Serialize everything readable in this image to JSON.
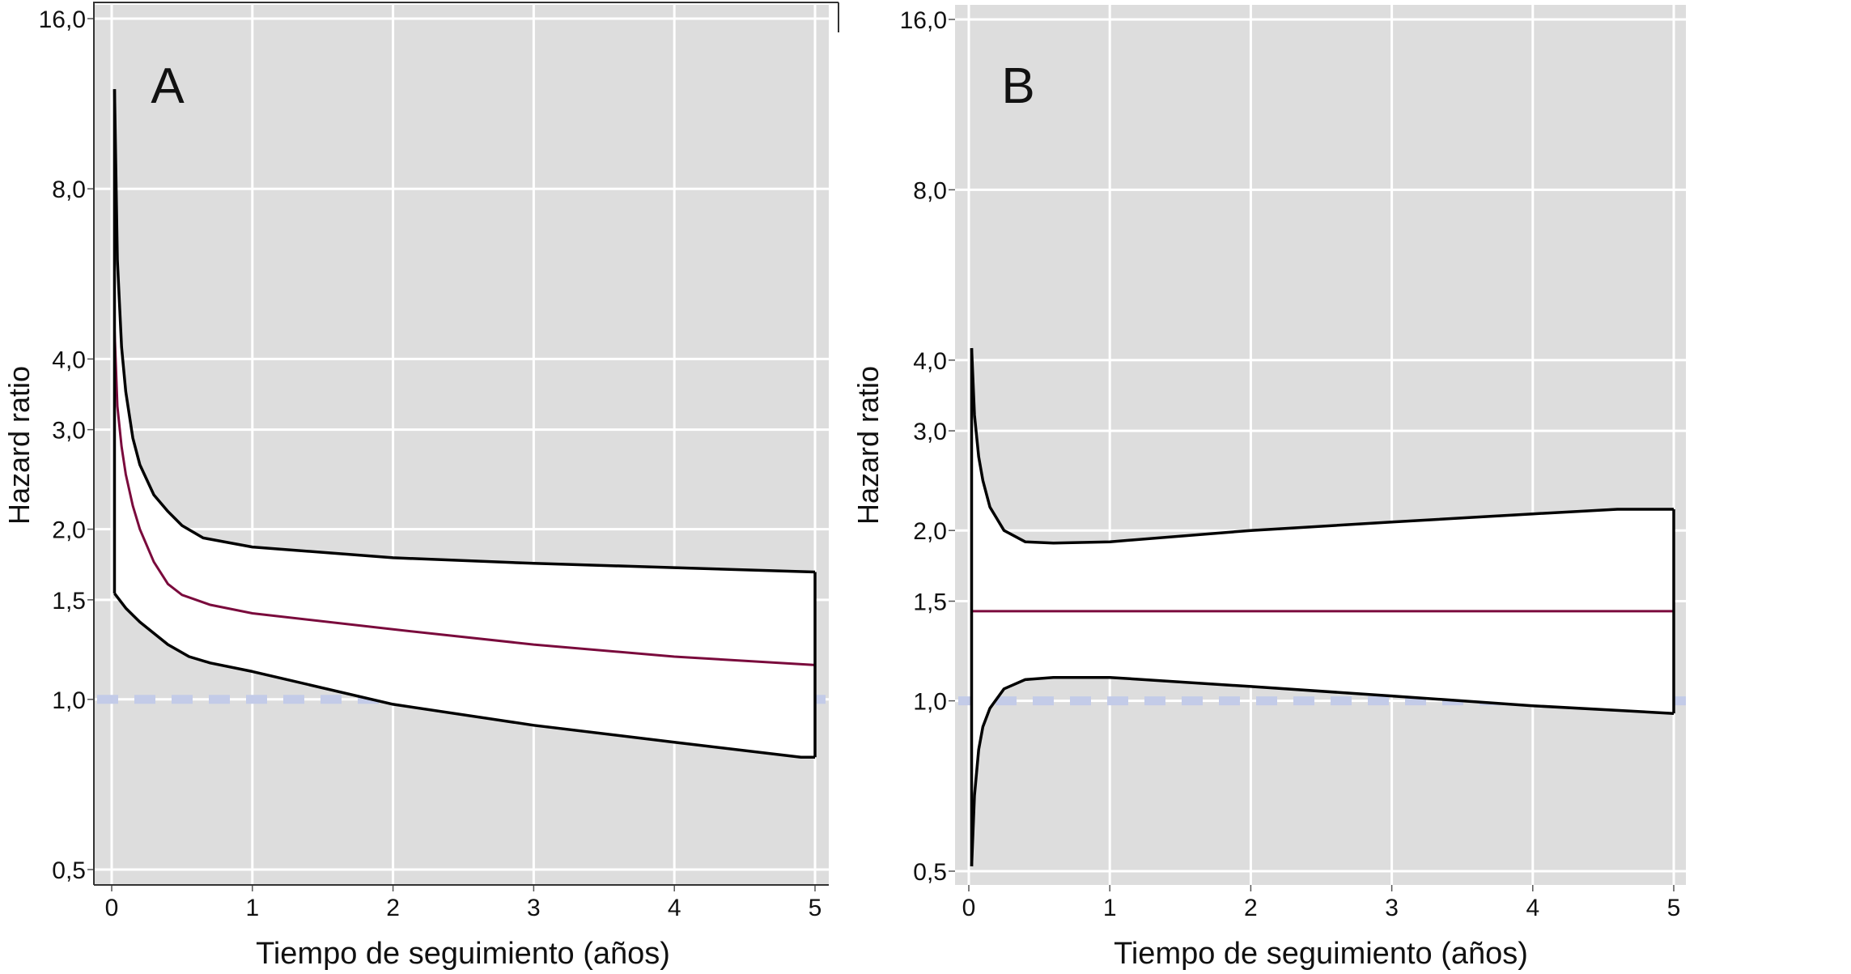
{
  "chart_data": [
    {
      "type": "line",
      "panel_label": "A",
      "xlabel": "Tiempo de seguimiento (años)",
      "ylabel": "Hazard ratio",
      "xlim": [
        0,
        5
      ],
      "ylim": [
        0.5,
        16
      ],
      "yscale": "log2",
      "x_ticks": [
        "0",
        "1",
        "2",
        "3",
        "4",
        "5"
      ],
      "x_tick_values": [
        0,
        1,
        2,
        3,
        4,
        5
      ],
      "y_ticks": [
        "0,5",
        "1,0",
        "1,5",
        "2,0",
        "3,0",
        "4,0",
        "8,0",
        "16,0"
      ],
      "y_tick_values": [
        0.5,
        1,
        1.5,
        2,
        3,
        4,
        8,
        16
      ],
      "grid": true,
      "reference_line": 1.0,
      "series": [
        {
          "name": "upper",
          "color": "#000000",
          "x": [
            0.02,
            0.04,
            0.07,
            0.1,
            0.15,
            0.2,
            0.3,
            0.4,
            0.5,
            0.65,
            1,
            2,
            3,
            4,
            5
          ],
          "y": [
            12,
            6,
            4.2,
            3.5,
            2.9,
            2.6,
            2.3,
            2.15,
            2.03,
            1.93,
            1.86,
            1.78,
            1.74,
            1.71,
            1.68
          ]
        },
        {
          "name": "hazard_ratio",
          "color": "#7a0a3c",
          "x": [
            0.02,
            0.04,
            0.07,
            0.1,
            0.15,
            0.2,
            0.3,
            0.4,
            0.5,
            0.7,
            1,
            2,
            3,
            4,
            5
          ],
          "y": [
            4.5,
            3.3,
            2.8,
            2.5,
            2.2,
            2.0,
            1.75,
            1.6,
            1.53,
            1.47,
            1.42,
            1.33,
            1.25,
            1.19,
            1.15
          ]
        },
        {
          "name": "lower",
          "color": "#000000",
          "x": [
            0.02,
            0.1,
            0.2,
            0.4,
            0.55,
            0.7,
            1,
            2,
            3,
            4,
            4.9,
            5
          ],
          "y": [
            1.54,
            1.45,
            1.37,
            1.25,
            1.19,
            1.16,
            1.12,
            0.98,
            0.9,
            0.84,
            0.79,
            0.79
          ]
        }
      ]
    },
    {
      "type": "line",
      "panel_label": "B",
      "xlabel": "Tiempo de seguimiento (años)",
      "ylabel": "Hazard ratio",
      "xlim": [
        0,
        5
      ],
      "ylim": [
        0.5,
        16
      ],
      "yscale": "log2",
      "x_ticks": [
        "0",
        "1",
        "2",
        "3",
        "4",
        "5"
      ],
      "x_tick_values": [
        0,
        1,
        2,
        3,
        4,
        5
      ],
      "y_ticks": [
        "0,5",
        "1,0",
        "1,5",
        "2,0",
        "3,0",
        "4,0",
        "8,0",
        "16,0"
      ],
      "y_tick_values": [
        0.5,
        1,
        1.5,
        2,
        3,
        4,
        8,
        16
      ],
      "grid": true,
      "reference_line": 1.0,
      "series": [
        {
          "name": "upper",
          "color": "#000000",
          "x": [
            0.02,
            0.04,
            0.07,
            0.1,
            0.15,
            0.25,
            0.4,
            0.6,
            1,
            2,
            3,
            4,
            4.6,
            5
          ],
          "y": [
            4.2,
            3.2,
            2.7,
            2.45,
            2.2,
            2.0,
            1.91,
            1.9,
            1.91,
            2.0,
            2.07,
            2.14,
            2.18,
            2.18
          ]
        },
        {
          "name": "hazard_ratio",
          "color": "#7a0a3c",
          "x": [
            0.02,
            5
          ],
          "y": [
            1.44,
            1.44
          ]
        },
        {
          "name": "lower",
          "color": "#000000",
          "x": [
            0.02,
            0.04,
            0.07,
            0.1,
            0.15,
            0.25,
            0.4,
            0.6,
            1,
            2,
            3,
            4,
            5
          ],
          "y": [
            0.51,
            0.68,
            0.82,
            0.9,
            0.97,
            1.05,
            1.09,
            1.1,
            1.1,
            1.06,
            1.02,
            0.98,
            0.95
          ]
        }
      ]
    }
  ]
}
